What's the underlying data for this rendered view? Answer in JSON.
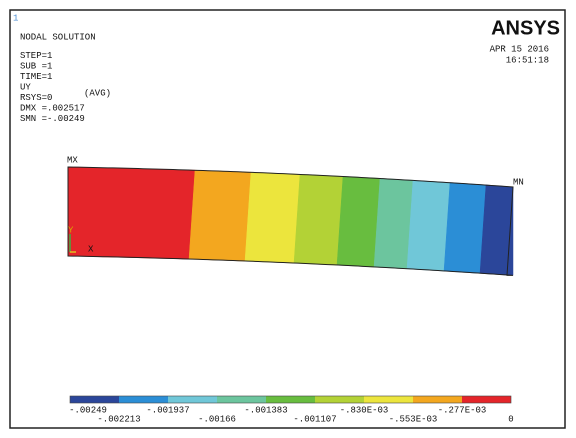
{
  "window": {
    "number": "1"
  },
  "header": {
    "lines": [
      "NODAL SOLUTION",
      "STEP=1",
      "SUB =1",
      "TIME=1",
      "UY",
      "RSYS=0",
      "DMX =.002517",
      "SMN =-.00249"
    ],
    "avg": "(AVG)"
  },
  "logo": "ANSYS",
  "date": "APR 15 2016",
  "time": "16:51:18",
  "labels": {
    "max": "MX",
    "min": "MN",
    "y_axis": "Y",
    "x_axis": "X"
  },
  "legend": {
    "colors": [
      "#2b469a",
      "#2b8ed6",
      "#70c7d8",
      "#6cc59e",
      "#68bd3f",
      "#b3d236",
      "#ece53d",
      "#f3a71f",
      "#e4252a"
    ],
    "labels": [
      "-.00249",
      "-.002213",
      "-.001937",
      "-.00166",
      "-.001383",
      "-.001107",
      "-.830E-03",
      "-.553E-03",
      "-.277E-03",
      "0"
    ]
  }
}
